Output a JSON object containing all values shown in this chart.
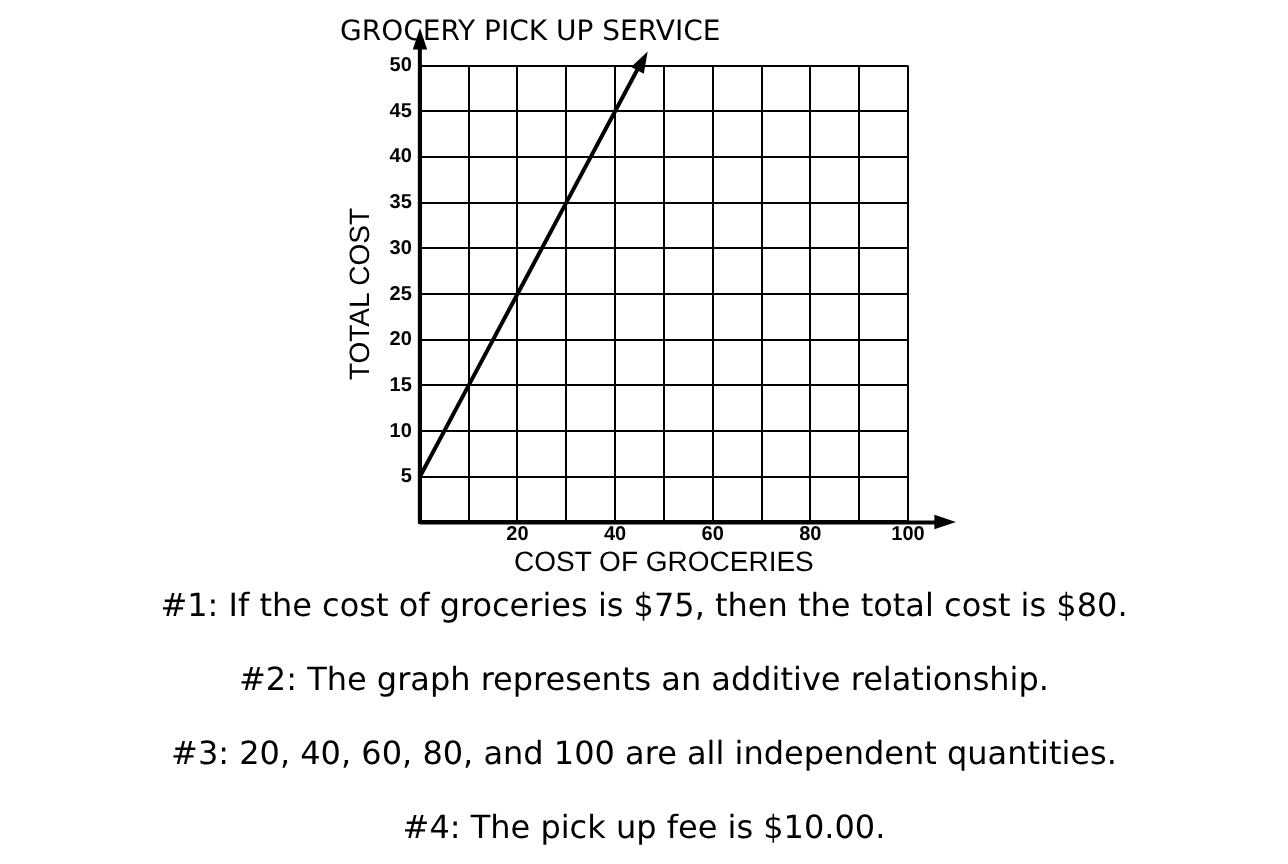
{
  "chart_data": {
    "type": "line",
    "title": "GROCERY PICK UP SERVICE",
    "xlabel": "COST OF GROCERIES",
    "ylabel": "TOTAL COST",
    "x": [
      0,
      10,
      20,
      30,
      40,
      45
    ],
    "series": [
      {
        "color": "#000000",
        "values": [
          5,
          15,
          25,
          35,
          45,
          50
        ]
      }
    ],
    "xlim": [
      0,
      100
    ],
    "ylim": [
      0,
      50
    ],
    "xticks": [
      {
        "value": 0,
        "label": null
      },
      {
        "value": 10,
        "label": null
      },
      20,
      {
        "value": 30,
        "label": null
      },
      40,
      {
        "value": 50,
        "label": null
      },
      60,
      {
        "value": 70,
        "label": null
      },
      80,
      {
        "value": 90,
        "label": null
      },
      100
    ],
    "yticks": [
      {
        "value": 0,
        "label": null
      },
      5,
      10,
      15,
      20,
      25,
      30,
      35,
      40,
      45,
      50
    ],
    "grid": true,
    "marker": "none",
    "line_style": "solid",
    "annotations": [
      "#1: If the cost of groceries is $75, then the total cost is $80.",
      "#2: The graph represents an additive relationship.",
      "#3: 20, 40, 60, 80, and 100 are all independent quantities.",
      "#4: The pick up fee is $10.00."
    ]
  }
}
